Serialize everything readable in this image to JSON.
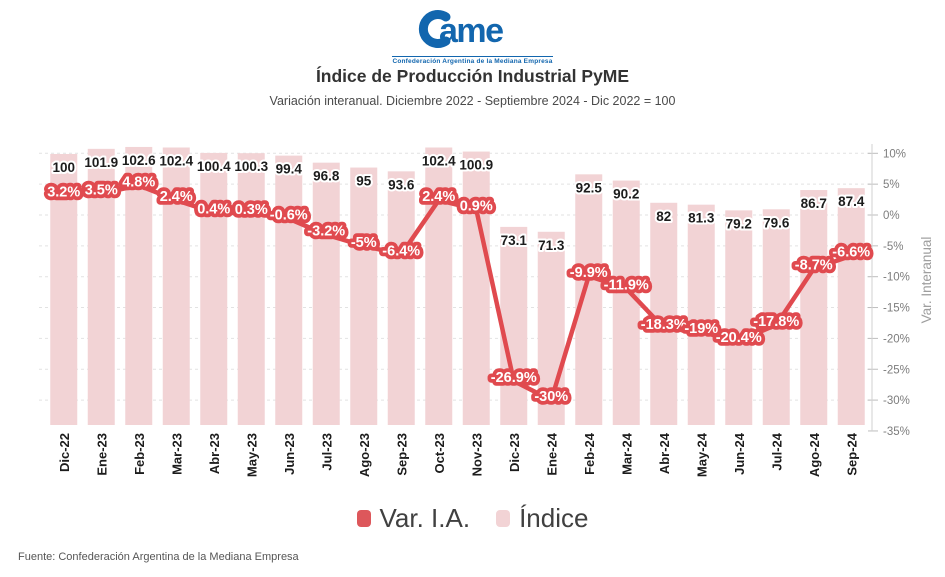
{
  "logo": {
    "word_rest": "ame",
    "caption": "Confederación Argentina de la Mediana Empresa"
  },
  "header": {
    "title": "Índice de Producción Industrial PyME",
    "subtitle": "Variación interanual. Diciembre 2022 - Septiembre 2024 - Dic 2022 = 100"
  },
  "chart_data": {
    "type": "bar",
    "title": "Índice de Producción Industrial PyME",
    "categories": [
      "Dic-22",
      "Ene-23",
      "Feb-23",
      "Mar-23",
      "Abr-23",
      "May-23",
      "Jun-23",
      "Jul-23",
      "Ago-23",
      "Sep-23",
      "Oct-23",
      "Nov-23",
      "Dic-23",
      "Ene-24",
      "Feb-24",
      "Mar-24",
      "Abr-24",
      "May-24",
      "Jun-24",
      "Jul-24",
      "Ago-24",
      "Sep-24"
    ],
    "series": [
      {
        "name": "Índice",
        "type": "bar",
        "values": [
          100,
          101.9,
          102.6,
          102.4,
          100.4,
          100.3,
          99.4,
          96.8,
          95,
          93.6,
          102.4,
          100.9,
          73.1,
          71.3,
          92.5,
          90.2,
          82,
          81.3,
          79.2,
          79.6,
          86.7,
          87.4
        ],
        "labels": [
          "100",
          "101.9",
          "102.6",
          "102.4",
          "100.4",
          "100.3",
          "99.4",
          "96.8",
          "95",
          "93.6",
          "102.4",
          "100.9",
          "73.1",
          "71.3",
          "92.5",
          "90.2",
          "82",
          "81.3",
          "79.2",
          "79.6",
          "86.7",
          "87.4"
        ]
      },
      {
        "name": "Var. I.A.",
        "type": "line",
        "unit": "%",
        "values": [
          3.2,
          3.5,
          4.8,
          2.4,
          0.4,
          0.3,
          -0.6,
          -3.2,
          -5,
          -6.4,
          2.4,
          0.9,
          -26.9,
          -30,
          -9.9,
          -11.9,
          -18.3,
          -19,
          -20.4,
          -17.8,
          -8.7,
          -6.6
        ],
        "labels": [
          "3.2%",
          "3.5%",
          "4.8%",
          "2.4%",
          "0.4%",
          "0.3%",
          "-0.6%",
          "-3.2%",
          "-5%",
          "-6.4%",
          "2.4%",
          "0.9%",
          "-26.9%",
          "-30%",
          "-9.9%",
          "-11.9%",
          "-18.3%",
          "-19%",
          "-20.4%",
          "-17.8%",
          "-8.7%",
          "-6.6%"
        ]
      }
    ],
    "right_axis": {
      "label": "Var. Interanual",
      "tick_values": [
        10,
        5,
        0,
        -5,
        -10,
        -15,
        -20,
        -25,
        -30,
        -35
      ],
      "tick_labels": [
        "10%",
        "5%",
        "0%",
        "-5%",
        "-10%",
        "-15%",
        "-20%",
        "-25%",
        "-30%",
        "-35%"
      ],
      "ylim": [
        -35,
        10
      ]
    },
    "grid": "horizontal-dashed",
    "legend_position": "bottom",
    "legend": [
      {
        "label": "Var. I.A.",
        "color": "#dd575b"
      },
      {
        "label": "Índice",
        "color": "#f2d3d5"
      }
    ]
  },
  "colors": {
    "logo_blue": "#1266ae",
    "bar_fill": "#f2d3d5",
    "line_stroke": "#e04a4f",
    "bar_label": "#1c1c1c",
    "x_label": "#1c1c1c",
    "tick_label": "#7d7d7d",
    "gridline": "#e2e2e2",
    "axis_line": "#d2d2d2",
    "axis_title": "#9e9e9e"
  },
  "footer": {
    "source": "Fuente: Confederación Argentina de la Mediana Empresa"
  }
}
